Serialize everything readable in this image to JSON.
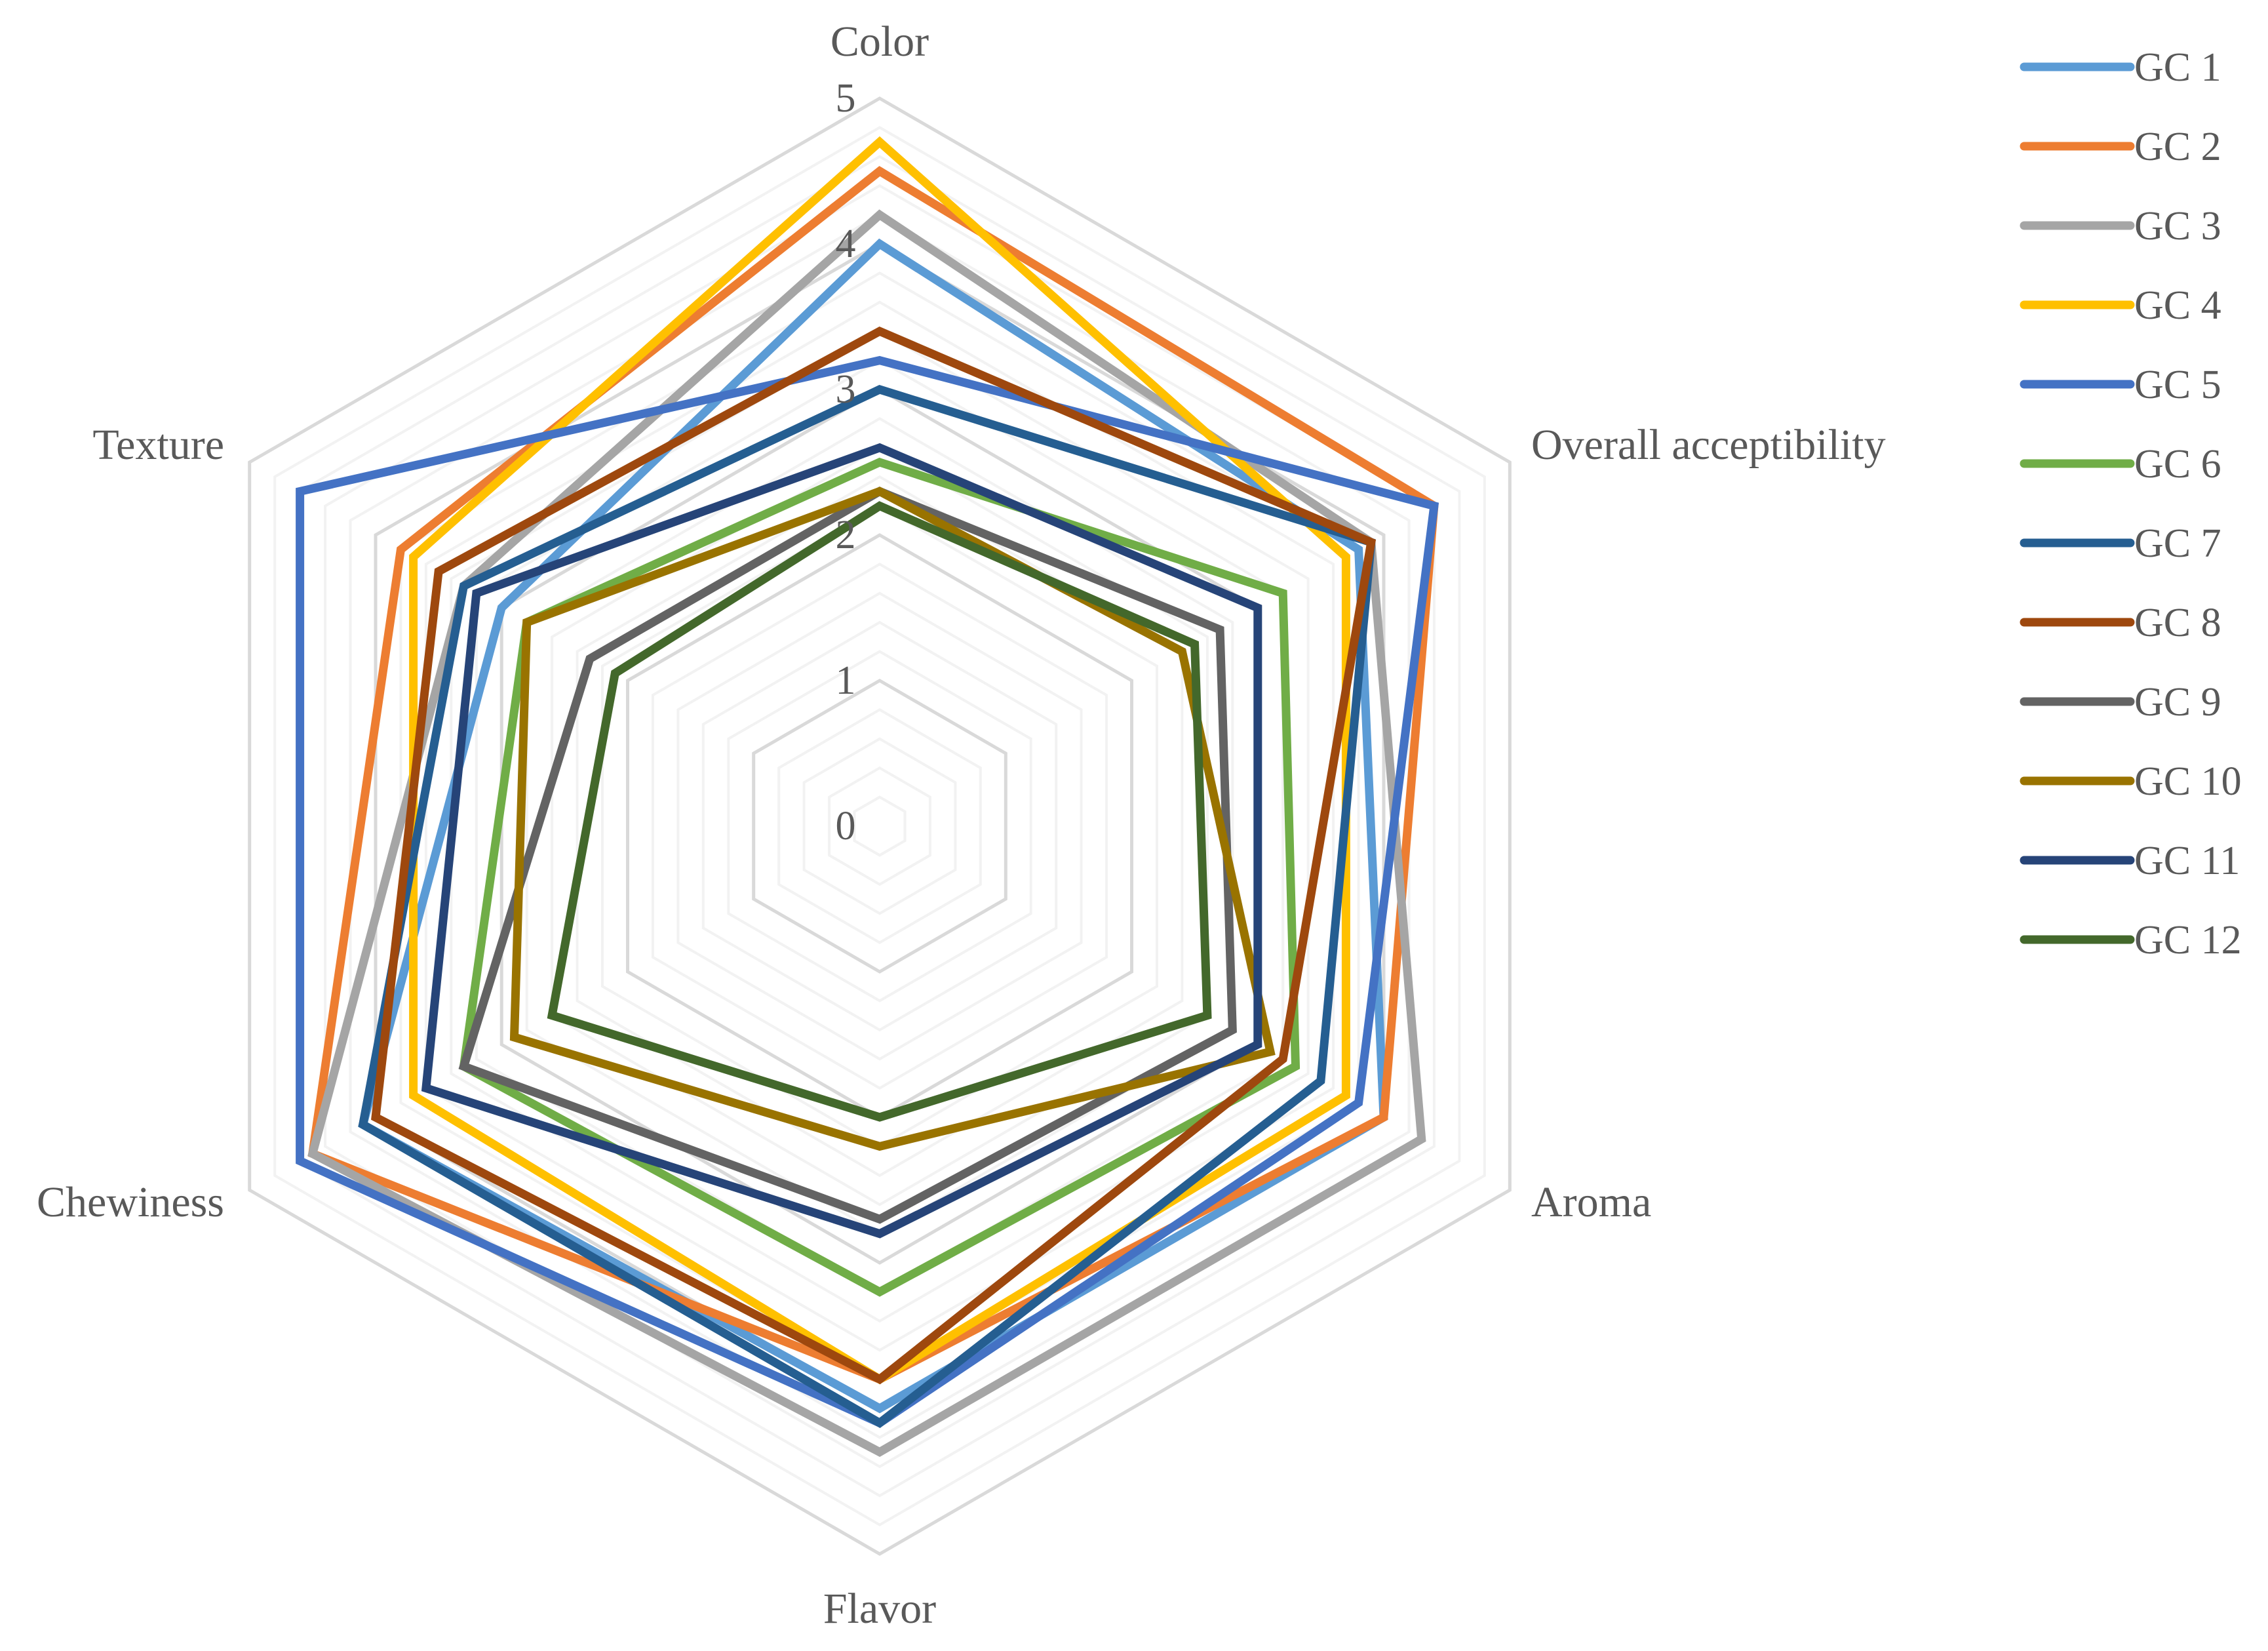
{
  "chart_data": {
    "type": "radar",
    "title": "",
    "axes": [
      "Color",
      "Overall acceptibility",
      "Aroma",
      "Flavor",
      "Chewiness",
      "Texture"
    ],
    "r_ticks": [
      0,
      1,
      2,
      3,
      4,
      5
    ],
    "r_range": [
      0,
      5
    ],
    "grid": true,
    "minor_grid_step": 0.2,
    "legend_position": "right",
    "series": [
      {
        "name": "GC 1",
        "color": "#5B9BD5",
        "values": [
          4.0,
          3.8,
          4.0,
          4.0,
          4.1,
          3.0
        ]
      },
      {
        "name": "GC 2",
        "color": "#ED7D31",
        "values": [
          4.5,
          4.4,
          4.0,
          3.8,
          4.5,
          3.8
        ]
      },
      {
        "name": "GC 3",
        "color": "#A5A5A5",
        "values": [
          4.2,
          3.9,
          4.3,
          4.3,
          4.5,
          3.3
        ]
      },
      {
        "name": "GC 4",
        "color": "#FFC000",
        "values": [
          4.7,
          3.7,
          3.7,
          3.8,
          3.7,
          3.7
        ]
      },
      {
        "name": "GC 5",
        "color": "#4472C4",
        "values": [
          3.2,
          4.4,
          3.8,
          4.1,
          4.6,
          4.6
        ]
      },
      {
        "name": "GC 6",
        "color": "#70AD47",
        "values": [
          2.5,
          3.2,
          3.3,
          3.2,
          3.3,
          2.8
        ]
      },
      {
        "name": "GC 7",
        "color": "#255E91",
        "values": [
          3.0,
          3.9,
          3.5,
          4.1,
          4.1,
          3.3
        ]
      },
      {
        "name": "GC 8",
        "color": "#9E480E",
        "values": [
          3.4,
          3.9,
          3.2,
          3.8,
          4.0,
          3.5
        ]
      },
      {
        "name": "GC 9",
        "color": "#636363",
        "values": [
          2.3,
          2.7,
          2.8,
          2.7,
          3.3,
          2.3
        ]
      },
      {
        "name": "GC 10",
        "color": "#997300",
        "values": [
          2.3,
          2.4,
          3.1,
          2.2,
          2.9,
          2.8
        ]
      },
      {
        "name": "GC 11",
        "color": "#264478",
        "values": [
          2.6,
          3.0,
          3.0,
          2.8,
          3.6,
          3.2
        ]
      },
      {
        "name": "GC 12",
        "color": "#43682B",
        "values": [
          2.2,
          2.5,
          2.6,
          2.0,
          2.6,
          2.1
        ]
      }
    ]
  }
}
